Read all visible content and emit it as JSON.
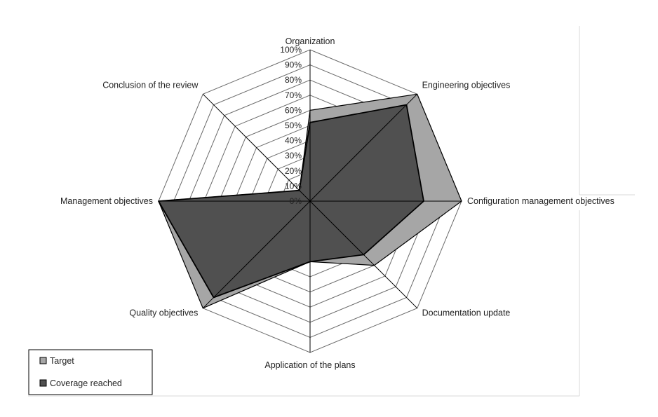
{
  "chart_data": {
    "type": "radar",
    "axes": [
      "Organization",
      "Engineering objectives",
      "Configuration management objectives",
      "Documentation update",
      "Application of the plans",
      "Quality objectives",
      "Management objectives",
      "Conclusion of the review"
    ],
    "ticks": [
      "0%",
      "10%",
      "20%",
      "30%",
      "40%",
      "50%",
      "60%",
      "70%",
      "80%",
      "90%",
      "100%"
    ],
    "range": [
      0,
      100
    ],
    "series": [
      {
        "name": "Target",
        "values": [
          60,
          100,
          100,
          60,
          40,
          100,
          100,
          10
        ],
        "color": "#a6a6a6"
      },
      {
        "name": "Coverage reached",
        "values": [
          52,
          90,
          75,
          50,
          40,
          90,
          100,
          10
        ],
        "color": "#505050"
      }
    ],
    "legend_position": "bottom-left",
    "grid": true
  }
}
